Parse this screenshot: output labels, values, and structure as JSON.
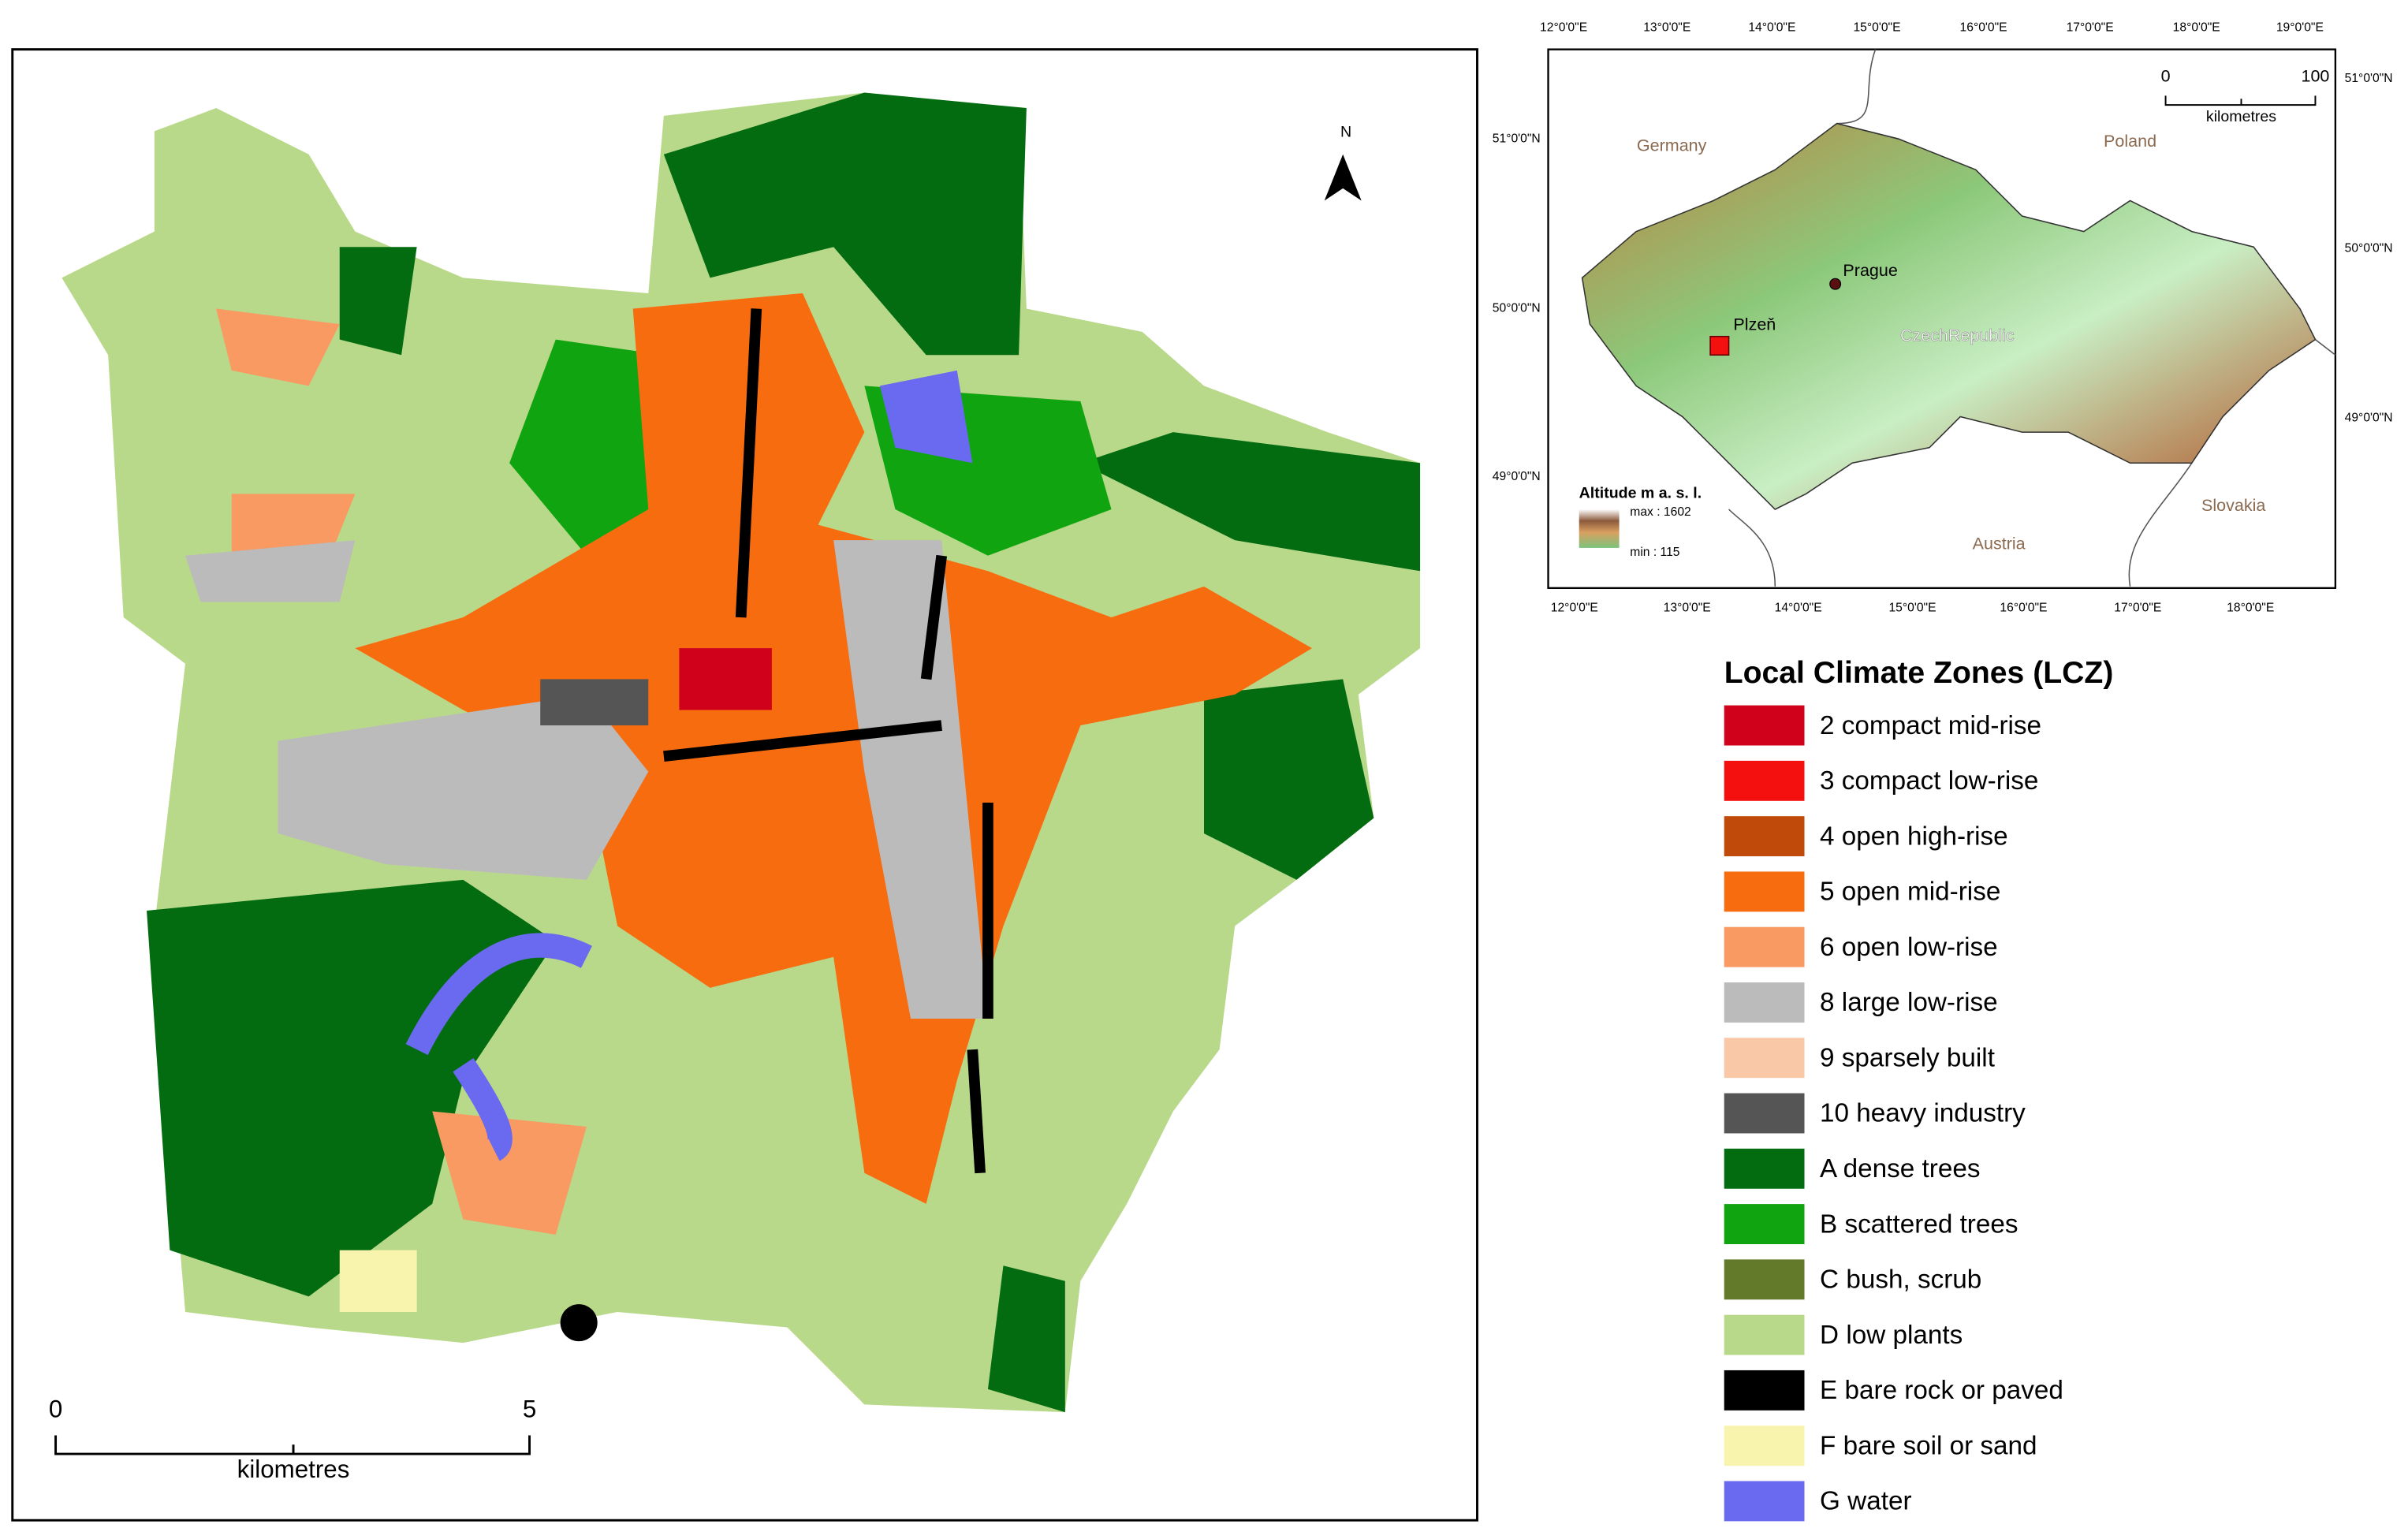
{
  "main_map": {
    "scale_bar": {
      "start": "0",
      "end": "5",
      "unit": "kilometres"
    },
    "north": "N"
  },
  "inset_map": {
    "top_ticks": [
      "12°0'0\"E",
      "13°0'0\"E",
      "14°0'0\"E",
      "15°0'0\"E",
      "16°0'0\"E",
      "17°0'0\"E",
      "18°0'0\"E",
      "19°0'0\"E"
    ],
    "bottom_ticks": [
      "12°0'0\"E",
      "13°0'0\"E",
      "14°0'0\"E",
      "15°0'0\"E",
      "16°0'0\"E",
      "17°0'0\"E",
      "18°0'0\"E"
    ],
    "left_ticks": [
      "51°0'0\"N",
      "50°0'0\"N",
      "49°0'0\"N"
    ],
    "right_ticks": [
      "51°0'0\"N",
      "50°0'0\"N",
      "49°0'0\"N"
    ],
    "countries": [
      "Germany",
      "Poland",
      "Austria",
      "Slovakia"
    ],
    "country": "CzechRepublic",
    "cities": [
      "Prague",
      "Plzeň"
    ],
    "scale_bar": {
      "start": "0",
      "end": "100",
      "unit": "kilometres"
    },
    "altitude_legend": {
      "title": "Altitude m a. s. l.",
      "max": "max : 1602",
      "min": "min : 115"
    }
  },
  "legend": {
    "title": "Local Climate Zones (LCZ)",
    "items": [
      {
        "label": "2 compact mid-rise",
        "color": "#d0021b"
      },
      {
        "label": "3 compact low-rise",
        "color": "#f51010"
      },
      {
        "label": "4 open high-rise",
        "color": "#bf4a0a"
      },
      {
        "label": "5 open mid-rise",
        "color": "#f86c10"
      },
      {
        "label": "6 open low-rise",
        "color": "#f89a62"
      },
      {
        "label": "8 large low-rise",
        "color": "#bbbbbb"
      },
      {
        "label": "9 sparsely built",
        "color": "#f9c8a6"
      },
      {
        "label": "10 heavy industry",
        "color": "#555555"
      },
      {
        "label": "A dense trees",
        "color": "#036b10"
      },
      {
        "label": "B scattered trees",
        "color": "#10a510"
      },
      {
        "label": "C bush, scrub",
        "color": "#637a2a"
      },
      {
        "label": "D low plants",
        "color": "#b9d98a"
      },
      {
        "label": "E bare rock or paved",
        "color": "#000000"
      },
      {
        "label": "F bare soil or sand",
        "color": "#f8f3ad"
      },
      {
        "label": "G water",
        "color": "#6a6af0"
      }
    ]
  }
}
